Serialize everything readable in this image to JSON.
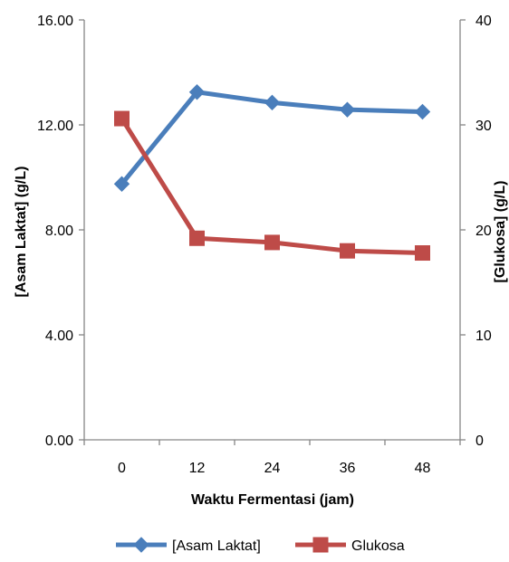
{
  "chart_data": {
    "type": "line",
    "title": "",
    "xlabel": "Waktu Fermentasi (jam)",
    "ylabel_left": "[Asam Laktat] (g/L)",
    "ylabel_right": "[Glukosa] (g/L)",
    "categories": [
      "0",
      "12",
      "24",
      "36",
      "48"
    ],
    "ylim_left": [
      0,
      16
    ],
    "ylim_right": [
      0,
      40
    ],
    "yticks_left": [
      "0.00",
      "4.00",
      "8.00",
      "12.00",
      "16.00"
    ],
    "yticks_right": [
      "0",
      "10",
      "20",
      "30",
      "40"
    ],
    "grid": false,
    "legend_position": "bottom",
    "series": [
      {
        "name": "[Asam Laktat]",
        "axis": "left",
        "color": "#4a7ebb",
        "marker": "diamond",
        "values": [
          9.75,
          13.25,
          12.85,
          12.58,
          12.5
        ]
      },
      {
        "name": "Glukosa",
        "axis": "right",
        "color": "#be4b48",
        "marker": "square",
        "values": [
          30.6,
          19.2,
          18.8,
          18.0,
          17.8
        ]
      }
    ]
  }
}
